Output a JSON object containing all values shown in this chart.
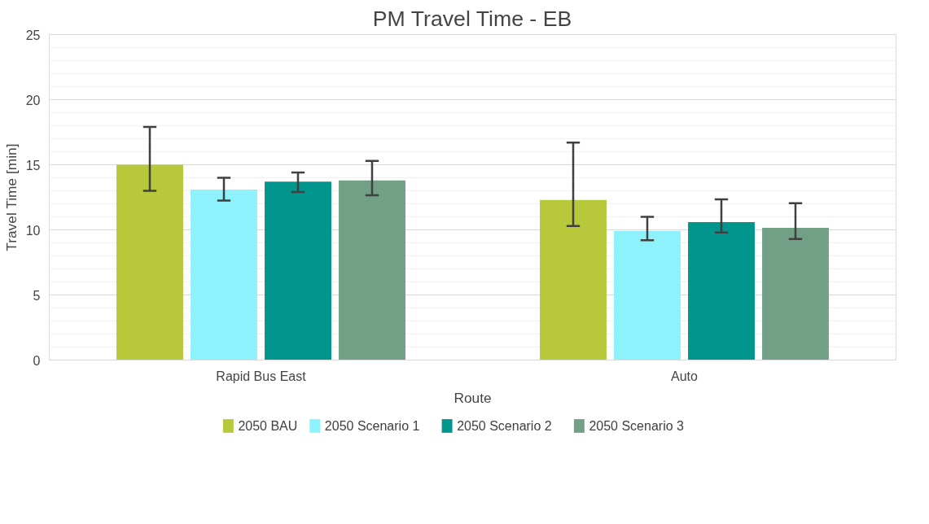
{
  "chart_data": {
    "type": "bar",
    "title": "PM Travel Time - EB",
    "xlabel": "Route",
    "ylabel": "Travel Time [min]",
    "categories": [
      "Rapid Bus East",
      "Auto"
    ],
    "series": [
      {
        "name": "2050 BAU",
        "color": "#b7c93b",
        "values": [
          15.0,
          12.3
        ],
        "errors": [
          [
            13.0,
            17.9
          ],
          [
            10.3,
            16.7
          ]
        ]
      },
      {
        "name": "2050 Scenario 1",
        "color": "#8ef2fc",
        "values": [
          13.1,
          9.9
        ],
        "errors": [
          [
            12.25,
            14.0
          ],
          [
            9.2,
            11.0
          ]
        ]
      },
      {
        "name": "2050 Scenario 2",
        "color": "#00968e",
        "values": [
          13.7,
          10.6
        ],
        "errors": [
          [
            12.9,
            14.4
          ],
          [
            9.8,
            12.35
          ]
        ]
      },
      {
        "name": "2050 Scenario 3",
        "color": "#72a086",
        "values": [
          13.8,
          10.15
        ],
        "errors": [
          [
            12.65,
            15.3
          ],
          [
            9.3,
            12.05
          ]
        ]
      }
    ],
    "ylim": [
      0,
      25
    ],
    "yticks": [
      0,
      5,
      10,
      15,
      20,
      25
    ],
    "grid": "y",
    "legend": "bottom"
  }
}
